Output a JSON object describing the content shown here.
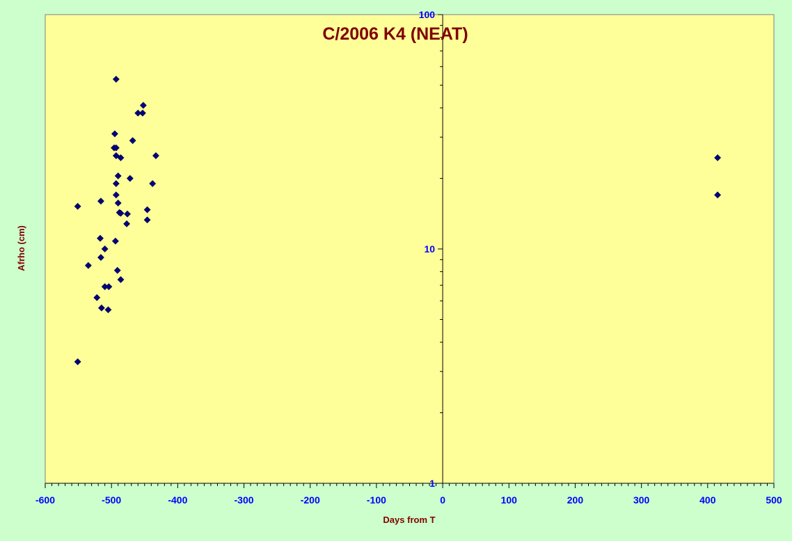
{
  "chart_data": {
    "type": "scatter",
    "title": "C/2006 K4 (NEAT)",
    "xlabel": "Days from T",
    "ylabel": "Afrho (cm)",
    "xlim": [
      -600,
      500
    ],
    "ylim": [
      1,
      100
    ],
    "y_scale": "log",
    "x_ticks": [
      -600,
      -500,
      -400,
      -300,
      -200,
      -100,
      0,
      100,
      200,
      300,
      400,
      500
    ],
    "y_ticks": [
      1,
      10,
      100
    ],
    "x_tick_labels": [
      "-600",
      "-500",
      "-400",
      "-300",
      "-200",
      "-100",
      "0",
      "100",
      "200",
      "300",
      "400",
      "500"
    ],
    "y_tick_labels": [
      "1",
      "10",
      "100"
    ],
    "grid": false,
    "legend": "none",
    "series": [
      {
        "marker": "diamond",
        "color": "#000080",
        "points": [
          [
            -493,
            53
          ],
          [
            -452,
            41
          ],
          [
            -460,
            38
          ],
          [
            -453,
            38
          ],
          [
            -495,
            31
          ],
          [
            -468,
            29
          ],
          [
            -496,
            27
          ],
          [
            -493,
            27
          ],
          [
            -433,
            25
          ],
          [
            -493,
            25
          ],
          [
            -486,
            24.5
          ],
          [
            -490,
            20.5
          ],
          [
            -472,
            20
          ],
          [
            -438,
            19
          ],
          [
            -493,
            19
          ],
          [
            -493,
            17
          ],
          [
            -516,
            16
          ],
          [
            -490,
            15.7
          ],
          [
            -551,
            15.2
          ],
          [
            -446,
            14.7
          ],
          [
            -488,
            14.3
          ],
          [
            -486,
            14.2
          ],
          [
            -476,
            14.1
          ],
          [
            -446,
            13.3
          ],
          [
            -477,
            12.8
          ],
          [
            -517,
            11.1
          ],
          [
            -494,
            10.8
          ],
          [
            -510,
            10
          ],
          [
            -516,
            9.2
          ],
          [
            -535,
            8.5
          ],
          [
            -491,
            8.1
          ],
          [
            -486,
            7.4
          ],
          [
            -510,
            6.9
          ],
          [
            -504,
            6.9
          ],
          [
            -522,
            6.2
          ],
          [
            -515,
            5.6
          ],
          [
            -505,
            5.5
          ],
          [
            -551,
            3.3
          ],
          [
            415,
            24.5
          ],
          [
            415,
            17
          ]
        ]
      }
    ]
  },
  "colors": {
    "plot_background": "#ffff99",
    "frame_background": "#ccffcc",
    "tick_label": "#0000ff",
    "axis_title": "#800000",
    "title": "#800000",
    "marker": "#000080"
  }
}
